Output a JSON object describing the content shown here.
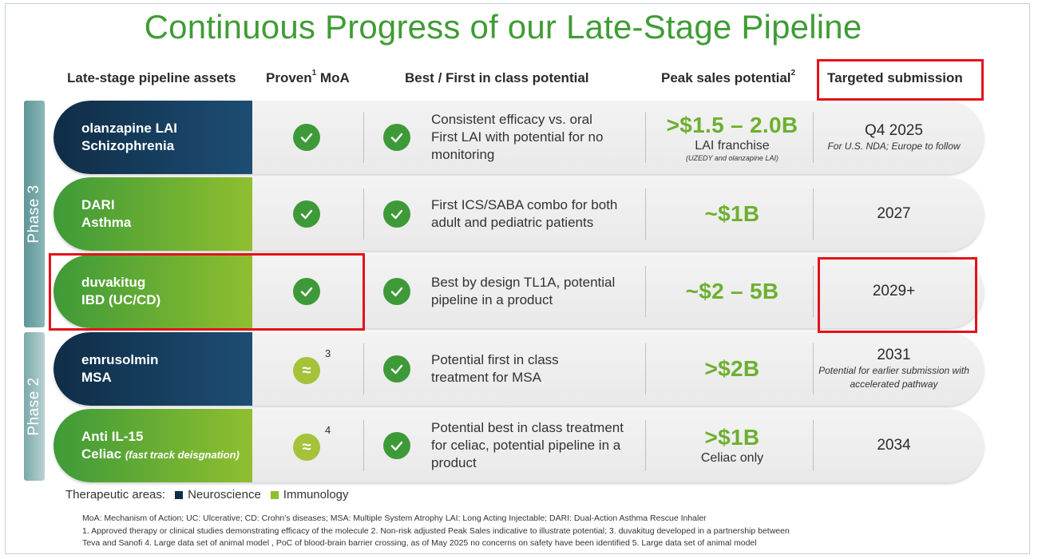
{
  "title": "Continuous Progress of our Late-Stage Pipeline",
  "headers": {
    "assets": "Late-stage pipeline assets",
    "moa_pre": "Proven",
    "moa_sup": "1",
    "moa_post": " MoA",
    "best": "Best / First in class potential",
    "peak_pre": "Peak sales potential",
    "peak_sup": "2",
    "submission": "Targeted submission"
  },
  "phases": {
    "phase3": "Phase 3",
    "phase2": "Phase 2"
  },
  "rows": [
    {
      "line1": "olanzapine LAI",
      "line2": "Schizophrenia",
      "line2_note": "",
      "area": "neuro",
      "moa": "check",
      "moa_sup": "",
      "desc": [
        "Consistent efficacy vs. oral",
        "First LAI with potential for no",
        "monitoring"
      ],
      "peak": ">$1.5 – 2.0B",
      "peak_sub": "LAI franchise",
      "peak_note": "(UZEDY and olanzapine LAI)",
      "year": "Q4 2025",
      "year_note": "For U.S. NDA; Europe to follow"
    },
    {
      "line1": "DARI",
      "line2": "Asthma",
      "line2_note": "",
      "area": "immu",
      "moa": "check",
      "moa_sup": "",
      "desc": [
        "First ICS/SABA combo for both",
        "adult and pediatric patients"
      ],
      "peak": "~$1B",
      "peak_sub": "",
      "peak_note": "",
      "year": "2027",
      "year_note": ""
    },
    {
      "line1": "duvakitug",
      "line2": "IBD (UC/CD)",
      "line2_note": "",
      "area": "immu",
      "moa": "check",
      "moa_sup": "",
      "desc": [
        "Best by design TL1A, potential",
        "pipeline in a product"
      ],
      "peak": "~$2 – 5B",
      "peak_sub": "",
      "peak_note": "",
      "year": "2029+",
      "year_note": ""
    },
    {
      "line1": "emrusolmin",
      "line2": "MSA",
      "line2_note": "",
      "area": "neuro",
      "moa": "approx",
      "moa_sup": "3",
      "desc": [
        "Potential first in class",
        "treatment for MSA"
      ],
      "peak": ">$2B",
      "peak_sub": "",
      "peak_note": "",
      "year": "2031",
      "year_note": "Potential for earlier submission with accelerated pathway"
    },
    {
      "line1": "Anti IL-15",
      "line2": "Celiac",
      "line2_note": "(fast track deisgnation)",
      "area": "immu",
      "moa": "approx",
      "moa_sup": "4",
      "desc": [
        "Potential best in class treatment",
        "for celiac, potential pipeline in a",
        "product"
      ],
      "peak": ">$1B",
      "peak_sub": "Celiac only",
      "peak_note": "",
      "year": "2034",
      "year_note": ""
    }
  ],
  "legend": {
    "label": "Therapeutic areas:",
    "neuro": "Neuroscience",
    "immu": "Immunology",
    "neuro_color": "#0f2d47",
    "immu_color": "#8fbf2f"
  },
  "footnotes": [
    "MoA: Mechanism of Action;  UC: Ulcerative; CD: Crohn's diseases; MSA: Multiple System Atrophy LAI: Long Acting Injectable; DARI: Dual-Action Asthma Rescue Inhaler",
    "1. Approved therapy or clinical studies demonstrating efficacy of the molecule 2. Non-risk adjusted Peak Sales indicative to illustrate potential; 3. duvakitug developed in a partnership between",
    "Teva and Sanofi 4. Large data set of animal model , PoC of blood-brain barrier crossing, as of May 2025 no concerns on safety have been identified  5. Large data set of animal model"
  ],
  "approx_symbol": "≈"
}
